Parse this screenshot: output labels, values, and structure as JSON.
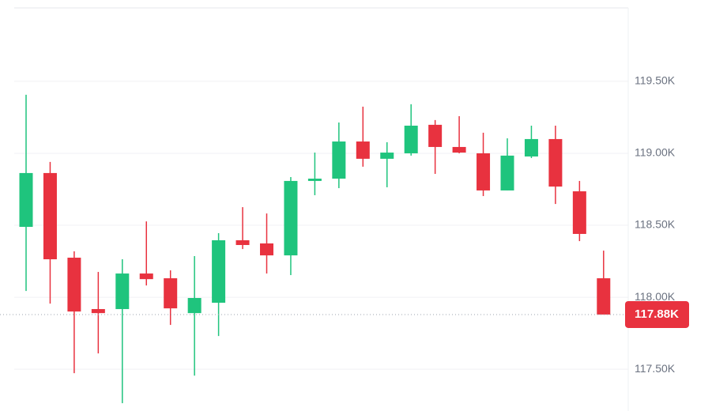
{
  "chart_data": {
    "type": "candlestick",
    "open": [
      118489,
      118863,
      118275,
      117918,
      117918,
      118165,
      118132,
      117890,
      117962,
      118396,
      118374,
      118291,
      118808,
      118824,
      119082,
      118962,
      119000,
      119198,
      119044,
      119000,
      118742,
      118978,
      119099,
      118736,
      118132
    ],
    "high": [
      119407,
      118940,
      118319,
      118176,
      118264,
      118527,
      118187,
      118286,
      118445,
      118626,
      118582,
      118835,
      119005,
      119214,
      119324,
      119077,
      119341,
      119231,
      119258,
      119143,
      119104,
      119192,
      119192,
      118808,
      118324
    ],
    "low": [
      118044,
      117956,
      117473,
      117610,
      117264,
      118082,
      117808,
      117456,
      117731,
      118335,
      118165,
      118154,
      118709,
      118758,
      118907,
      118764,
      118984,
      118857,
      119000,
      118703,
      118742,
      118967,
      118648,
      118390,
      117890
    ],
    "close": [
      118863,
      118264,
      117901,
      117890,
      118165,
      118126,
      117923,
      117995,
      118396,
      118363,
      118291,
      118808,
      118824,
      119082,
      118962,
      119005,
      119192,
      119044,
      119005,
      118742,
      118984,
      119099,
      118769,
      118440,
      117880
    ],
    "up_color": "#1fc47d",
    "down_color": "#e8323f",
    "ylim": [
      117210,
      120010
    ],
    "yticks": [
      {
        "value": 117500,
        "label": "117.50K"
      },
      {
        "value": 118000,
        "label": "118.00K"
      },
      {
        "value": 118500,
        "label": "118.50K"
      },
      {
        "value": 119000,
        "label": "119.00K"
      },
      {
        "value": 119500,
        "label": "119.50K"
      }
    ],
    "grid": true,
    "last_price": {
      "value": 117880,
      "label": "117.88K"
    }
  }
}
